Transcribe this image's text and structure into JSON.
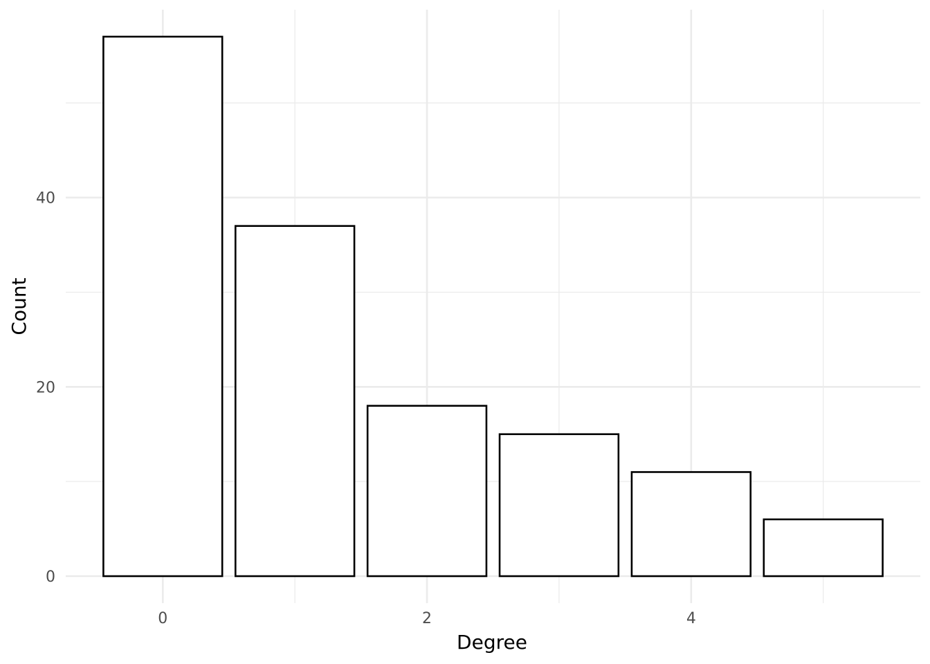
{
  "chart_data": {
    "type": "bar",
    "xlabel": "Degree",
    "ylabel": "Count",
    "x": [
      0,
      1,
      2,
      3,
      4,
      5
    ],
    "values": [
      57,
      37,
      18,
      15,
      11,
      6
    ],
    "x_ticks": [
      "0",
      "2",
      "4"
    ],
    "x_tick_values": [
      0,
      2,
      4
    ],
    "y_ticks": [
      "0",
      "20",
      "40"
    ],
    "y_tick_values": [
      0,
      20,
      40
    ],
    "xlim": [
      -0.735,
      5.735
    ],
    "ylim": [
      -2.85,
      59.85
    ],
    "bar_fill": "#ffffff",
    "bar_stroke": "#000000",
    "grid": true,
    "legend": "none"
  }
}
